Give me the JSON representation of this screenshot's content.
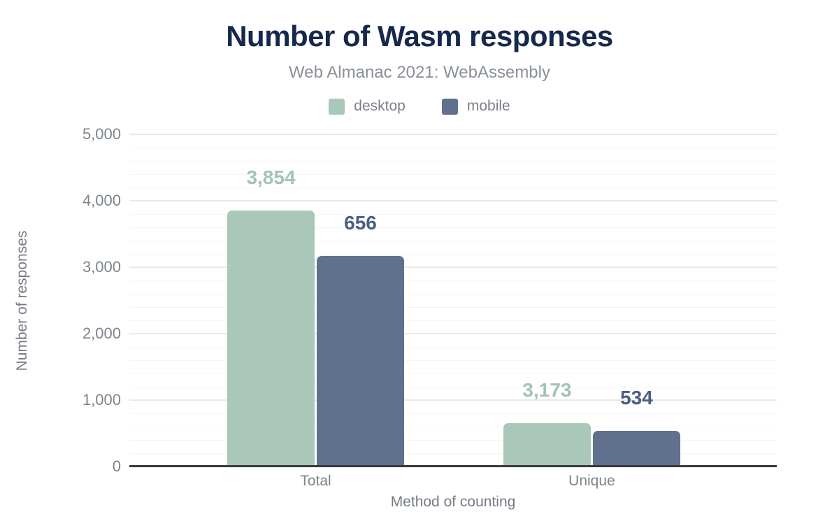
{
  "header": {
    "title": "Number of Wasm responses",
    "subtitle": "Web Almanac 2021: WebAssembly"
  },
  "chart_data": {
    "type": "bar",
    "title": "Number of Wasm responses",
    "subtitle": "Web Almanac 2021: WebAssembly",
    "categories": [
      "Total",
      "Unique"
    ],
    "series": [
      {
        "name": "desktop",
        "color": "#a9c8b9",
        "label_color": "#a3c4b4",
        "values": [
          3854,
          656
        ]
      },
      {
        "name": "mobile",
        "color": "#5f718c",
        "label_color": "#4c5e80",
        "values": [
          3173,
          534
        ]
      }
    ],
    "xlabel": "Method of counting",
    "ylabel": "Number of responses",
    "ylim": [
      0,
      5000
    ],
    "ytick_interval": 1000,
    "minor_gridline_interval": 200,
    "grid": true,
    "legend_position": "top",
    "value_labels": [
      "3,854",
      "3,173",
      "656",
      "534"
    ],
    "ytick_labels": [
      "0",
      "1,000",
      "2,000",
      "3,000",
      "4,000",
      "5,000"
    ]
  },
  "colors": {
    "title_text": "#15294c",
    "subtitle_text": "#8a9097",
    "legend_text": "#7b8188",
    "tick_text": "#7e848d",
    "axis_title_text": "#747b84",
    "gridline_major": "#e9e9e9",
    "gridline_minor": "#f6f6f6",
    "axis_line": "#383838",
    "background": "#ffffff"
  }
}
